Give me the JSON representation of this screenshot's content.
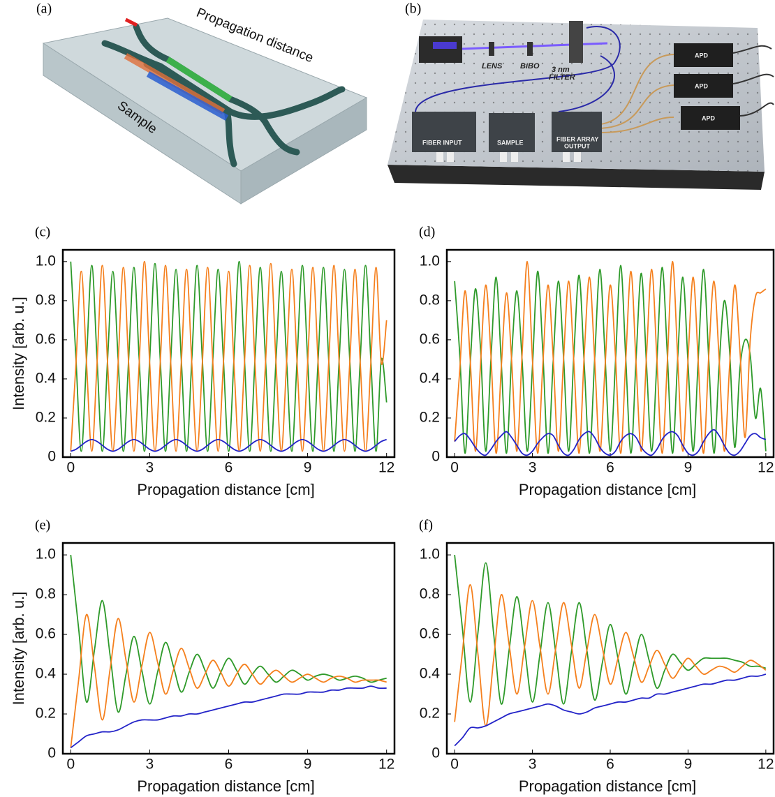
{
  "panel_a": {
    "label": "(a)",
    "annotations": [
      "Propagation distance",
      "Sample"
    ]
  },
  "panel_b": {
    "label": "(b)",
    "lens": "LENS",
    "bibo": "BiBO",
    "filter": [
      "3 nm",
      "FILTER"
    ],
    "apd": [
      "APD",
      "APD",
      "APD"
    ],
    "fiber_input": "FIBER INPUT",
    "sample": "SAMPLE",
    "fiber_output": [
      "FIBER ARRAY",
      "OUTPUT"
    ]
  },
  "chart_data": [
    {
      "type": "line",
      "panel_label": "(c)",
      "x_label": "Propagation distance [cm]",
      "y_label": "Intensity [arb. u.]",
      "x": [
        0,
        0.2,
        0.4,
        0.6,
        0.8,
        1,
        1.2,
        1.4,
        1.6,
        1.8,
        2,
        2.2,
        2.4,
        2.6,
        2.8,
        3,
        3.2,
        3.4,
        3.6,
        3.8,
        4,
        4.2,
        4.4,
        4.6,
        4.8,
        5,
        5.2,
        5.4,
        5.6,
        5.8,
        6,
        6.2,
        6.4,
        6.6,
        6.8,
        7,
        7.2,
        7.4,
        7.6,
        7.8,
        8,
        8.2,
        8.4,
        8.6,
        8.8,
        9,
        9.2,
        9.4,
        9.6,
        9.8,
        10,
        10.2,
        10.4,
        10.6,
        10.8,
        11,
        11.2,
        11.4,
        11.6,
        11.8,
        12
      ],
      "series": [
        {
          "color": "#2e9a2a",
          "values": [
            1.0,
            0.5,
            0.03,
            0.5,
            0.98,
            0.5,
            0.03,
            0.5,
            0.95,
            0.5,
            0.03,
            0.5,
            0.97,
            0.5,
            0.03,
            0.5,
            0.99,
            0.5,
            0.03,
            0.5,
            0.96,
            0.5,
            0.03,
            0.5,
            0.98,
            0.5,
            0.03,
            0.5,
            0.96,
            0.5,
            0.03,
            0.5,
            1.0,
            0.5,
            0.03,
            0.5,
            0.97,
            0.5,
            0.03,
            0.5,
            0.95,
            0.5,
            0.03,
            0.5,
            0.98,
            0.5,
            0.03,
            0.5,
            0.97,
            0.5,
            0.03,
            0.5,
            0.96,
            0.5,
            0.03,
            0.5,
            0.98,
            0.5,
            0.03,
            0.5,
            0.28
          ]
        },
        {
          "color": "#f5801e",
          "values": [
            0.03,
            0.48,
            0.95,
            0.48,
            0.03,
            0.48,
            0.98,
            0.48,
            0.03,
            0.48,
            0.97,
            0.48,
            0.03,
            0.48,
            1.0,
            0.48,
            0.03,
            0.48,
            0.98,
            0.48,
            0.03,
            0.48,
            0.96,
            0.48,
            0.03,
            0.48,
            0.97,
            0.48,
            0.03,
            0.48,
            0.95,
            0.48,
            0.03,
            0.48,
            0.98,
            0.48,
            0.03,
            0.48,
            0.99,
            0.48,
            0.03,
            0.48,
            0.96,
            0.48,
            0.03,
            0.48,
            0.97,
            0.48,
            0.03,
            0.48,
            0.98,
            0.48,
            0.03,
            0.48,
            0.96,
            0.48,
            0.03,
            0.48,
            0.97,
            0.48,
            0.7
          ]
        },
        {
          "color": "#2323c8",
          "values": [
            0.03,
            0.04,
            0.06,
            0.08,
            0.09,
            0.08,
            0.06,
            0.04,
            0.03,
            0.04,
            0.06,
            0.08,
            0.09,
            0.08,
            0.06,
            0.04,
            0.03,
            0.04,
            0.06,
            0.08,
            0.09,
            0.08,
            0.06,
            0.04,
            0.03,
            0.04,
            0.06,
            0.08,
            0.09,
            0.08,
            0.06,
            0.04,
            0.03,
            0.04,
            0.06,
            0.08,
            0.09,
            0.08,
            0.06,
            0.04,
            0.03,
            0.04,
            0.06,
            0.08,
            0.09,
            0.08,
            0.06,
            0.04,
            0.03,
            0.04,
            0.06,
            0.08,
            0.09,
            0.08,
            0.06,
            0.04,
            0.03,
            0.04,
            0.06,
            0.08,
            0.09
          ]
        }
      ],
      "xlim": [
        -0.3,
        12.3
      ],
      "ylim": [
        0,
        1.06
      ],
      "xticks": [
        0,
        3,
        6,
        9,
        12
      ],
      "yticks": [
        0,
        0.2,
        0.4,
        0.6,
        0.8,
        {
          "value": 1,
          "label": "1.0"
        }
      ]
    },
    {
      "type": "line",
      "panel_label": "(d)",
      "x_label": "Propagation distance [cm]",
      "x": [
        0,
        0.2,
        0.4,
        0.6,
        0.8,
        1,
        1.2,
        1.4,
        1.6,
        1.8,
        2,
        2.2,
        2.4,
        2.6,
        2.8,
        3,
        3.2,
        3.4,
        3.6,
        3.8,
        4,
        4.2,
        4.4,
        4.6,
        4.8,
        5,
        5.2,
        5.4,
        5.6,
        5.8,
        6,
        6.2,
        6.4,
        6.6,
        6.8,
        7,
        7.2,
        7.4,
        7.6,
        7.8,
        8,
        8.2,
        8.4,
        8.6,
        8.8,
        9,
        9.2,
        9.4,
        9.6,
        9.8,
        10,
        10.2,
        10.4,
        10.6,
        10.8,
        11,
        11.2,
        11.4,
        11.6,
        11.8,
        12
      ],
      "series": [
        {
          "color": "#2e9a2a",
          "values": [
            0.9,
            0.52,
            0.02,
            0.47,
            0.86,
            0.55,
            0.03,
            0.5,
            0.92,
            0.48,
            0.02,
            0.52,
            0.85,
            0.5,
            0.03,
            0.46,
            0.95,
            0.54,
            0.02,
            0.49,
            0.9,
            0.51,
            0.03,
            0.53,
            0.93,
            0.47,
            0.02,
            0.5,
            0.96,
            0.52,
            0.03,
            0.48,
            0.98,
            0.5,
            0.02,
            0.51,
            0.94,
            0.47,
            0.03,
            0.49,
            0.97,
            0.53,
            0.02,
            0.5,
            0.92,
            0.48,
            0.03,
            0.52,
            0.96,
            0.5,
            0.02,
            0.47,
            0.8,
            0.55,
            0.05,
            0.45,
            0.6,
            0.52,
            0.2,
            0.35,
            0.03
          ]
        },
        {
          "color": "#f5801e",
          "values": [
            0.08,
            0.45,
            0.85,
            0.5,
            0.03,
            0.48,
            0.88,
            0.52,
            0.02,
            0.46,
            0.84,
            0.49,
            0.03,
            0.52,
            1.0,
            0.5,
            0.02,
            0.47,
            0.88,
            0.51,
            0.03,
            0.5,
            0.9,
            0.48,
            0.02,
            0.53,
            0.92,
            0.5,
            0.03,
            0.46,
            0.88,
            0.52,
            0.02,
            0.5,
            0.95,
            0.47,
            0.03,
            0.52,
            0.96,
            0.5,
            0.02,
            0.48,
            1.0,
            0.51,
            0.03,
            0.5,
            0.92,
            0.47,
            0.02,
            0.52,
            0.9,
            0.5,
            0.03,
            0.46,
            0.88,
            0.55,
            0.1,
            0.6,
            0.82,
            0.84,
            0.86
          ]
        },
        {
          "color": "#2323c8",
          "values": [
            0.08,
            0.11,
            0.12,
            0.09,
            0.05,
            0.02,
            0.01,
            0.04,
            0.08,
            0.11,
            0.13,
            0.1,
            0.06,
            0.02,
            0.01,
            0.03,
            0.07,
            0.1,
            0.12,
            0.11,
            0.06,
            0.02,
            0.01,
            0.04,
            0.09,
            0.12,
            0.13,
            0.1,
            0.05,
            0.02,
            0.01,
            0.03,
            0.08,
            0.11,
            0.12,
            0.1,
            0.05,
            0.02,
            0.01,
            0.04,
            0.09,
            0.12,
            0.13,
            0.11,
            0.06,
            0.02,
            0.01,
            0.03,
            0.08,
            0.12,
            0.14,
            0.11,
            0.06,
            0.02,
            0.01,
            0.03,
            0.07,
            0.11,
            0.12,
            0.1,
            0.09
          ]
        }
      ],
      "xlim": [
        -0.3,
        12.3
      ],
      "ylim": [
        0,
        1.06
      ],
      "xticks": [
        0,
        3,
        6,
        9,
        12
      ],
      "yticks": [
        0,
        0.2,
        0.4,
        0.6,
        0.8,
        {
          "value": 1,
          "label": "1.0"
        }
      ]
    },
    {
      "type": "line",
      "panel_label": "(e)",
      "x_label": "Propagation distance [cm]",
      "y_label": "Intensity [arb. u.]",
      "x": [
        0,
        0.3,
        0.6,
        0.9,
        1.2,
        1.5,
        1.8,
        2.1,
        2.4,
        2.7,
        3,
        3.3,
        3.6,
        3.9,
        4.2,
        4.5,
        4.8,
        5.1,
        5.4,
        5.7,
        6,
        6.3,
        6.6,
        6.9,
        7.2,
        7.5,
        7.8,
        8.1,
        8.4,
        8.7,
        9,
        9.3,
        9.6,
        9.9,
        10.2,
        10.5,
        10.8,
        11.1,
        11.4,
        11.7,
        12
      ],
      "series": [
        {
          "color": "#2e9a2a",
          "values": [
            1.0,
            0.63,
            0.26,
            0.52,
            0.77,
            0.49,
            0.21,
            0.4,
            0.59,
            0.42,
            0.25,
            0.41,
            0.56,
            0.44,
            0.31,
            0.41,
            0.5,
            0.42,
            0.33,
            0.41,
            0.48,
            0.42,
            0.35,
            0.4,
            0.44,
            0.4,
            0.36,
            0.39,
            0.42,
            0.4,
            0.37,
            0.39,
            0.4,
            0.39,
            0.37,
            0.38,
            0.39,
            0.38,
            0.36,
            0.37,
            0.38
          ]
        },
        {
          "color": "#f5801e",
          "values": [
            0.03,
            0.37,
            0.7,
            0.44,
            0.17,
            0.43,
            0.68,
            0.47,
            0.26,
            0.44,
            0.61,
            0.46,
            0.3,
            0.42,
            0.53,
            0.43,
            0.33,
            0.4,
            0.47,
            0.41,
            0.34,
            0.4,
            0.45,
            0.4,
            0.35,
            0.39,
            0.42,
            0.39,
            0.36,
            0.38,
            0.4,
            0.38,
            0.36,
            0.38,
            0.39,
            0.38,
            0.36,
            0.37,
            0.37,
            0.37,
            0.36
          ]
        },
        {
          "color": "#2323c8",
          "values": [
            0.03,
            0.06,
            0.09,
            0.1,
            0.11,
            0.11,
            0.12,
            0.14,
            0.16,
            0.17,
            0.17,
            0.17,
            0.18,
            0.19,
            0.19,
            0.2,
            0.2,
            0.21,
            0.22,
            0.23,
            0.24,
            0.25,
            0.26,
            0.26,
            0.27,
            0.28,
            0.29,
            0.3,
            0.3,
            0.3,
            0.31,
            0.31,
            0.31,
            0.32,
            0.32,
            0.33,
            0.33,
            0.33,
            0.34,
            0.33,
            0.33
          ]
        }
      ],
      "xlim": [
        -0.3,
        12.3
      ],
      "ylim": [
        0,
        1.06
      ],
      "xticks": [
        0,
        3,
        6,
        9,
        12
      ],
      "yticks": [
        0,
        0.2,
        0.4,
        0.6,
        0.8,
        {
          "value": 1,
          "label": "1.0"
        }
      ]
    },
    {
      "type": "line",
      "panel_label": "(f)",
      "x_label": "Propagation distance [cm]",
      "x": [
        0,
        0.3,
        0.6,
        0.9,
        1.2,
        1.5,
        1.8,
        2.1,
        2.4,
        2.7,
        3,
        3.3,
        3.6,
        3.9,
        4.2,
        4.5,
        4.8,
        5.1,
        5.4,
        5.7,
        6,
        6.3,
        6.6,
        6.9,
        7.2,
        7.5,
        7.8,
        8.1,
        8.4,
        8.7,
        9,
        9.3,
        9.6,
        9.9,
        10.2,
        10.5,
        10.8,
        11.1,
        11.4,
        11.7,
        12
      ],
      "series": [
        {
          "color": "#2e9a2a",
          "values": [
            1.0,
            0.63,
            0.26,
            0.61,
            0.96,
            0.61,
            0.25,
            0.52,
            0.79,
            0.53,
            0.26,
            0.51,
            0.76,
            0.51,
            0.25,
            0.51,
            0.76,
            0.52,
            0.27,
            0.46,
            0.65,
            0.48,
            0.3,
            0.45,
            0.6,
            0.47,
            0.33,
            0.42,
            0.5,
            0.46,
            0.42,
            0.45,
            0.48,
            0.48,
            0.48,
            0.48,
            0.47,
            0.46,
            0.44,
            0.44,
            0.43
          ]
        },
        {
          "color": "#f5801e",
          "values": [
            0.16,
            0.51,
            0.85,
            0.5,
            0.14,
            0.47,
            0.8,
            0.55,
            0.3,
            0.54,
            0.77,
            0.53,
            0.3,
            0.53,
            0.76,
            0.55,
            0.33,
            0.52,
            0.7,
            0.53,
            0.35,
            0.48,
            0.61,
            0.49,
            0.36,
            0.44,
            0.52,
            0.45,
            0.38,
            0.43,
            0.48,
            0.44,
            0.4,
            0.42,
            0.44,
            0.43,
            0.41,
            0.44,
            0.47,
            0.45,
            0.42
          ]
        },
        {
          "color": "#2323c8",
          "values": [
            0.04,
            0.08,
            0.13,
            0.13,
            0.14,
            0.16,
            0.18,
            0.2,
            0.21,
            0.22,
            0.23,
            0.24,
            0.25,
            0.24,
            0.22,
            0.21,
            0.2,
            0.21,
            0.23,
            0.24,
            0.25,
            0.26,
            0.26,
            0.27,
            0.28,
            0.28,
            0.3,
            0.3,
            0.31,
            0.32,
            0.33,
            0.34,
            0.35,
            0.35,
            0.36,
            0.37,
            0.37,
            0.38,
            0.39,
            0.39,
            0.4
          ]
        }
      ],
      "xlim": [
        -0.3,
        12.3
      ],
      "ylim": [
        0,
        1.06
      ],
      "xticks": [
        0,
        3,
        6,
        9,
        12
      ],
      "yticks": [
        0,
        0.2,
        0.4,
        0.6,
        0.8,
        {
          "value": 1,
          "label": "1.0"
        }
      ]
    }
  ]
}
